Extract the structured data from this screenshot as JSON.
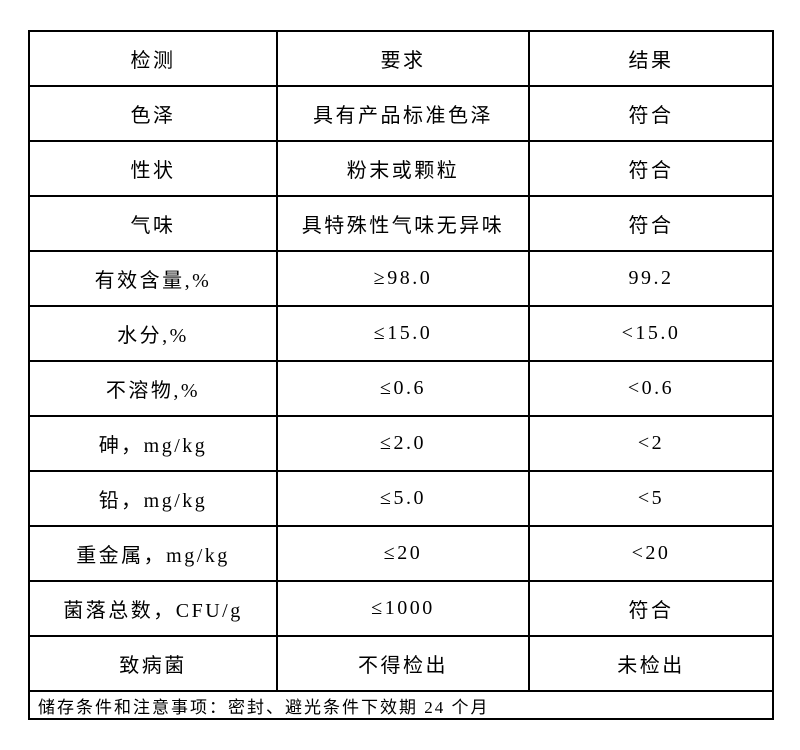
{
  "table": {
    "headers": [
      "检测",
      "要求",
      "结果"
    ],
    "rows": [
      {
        "test": "色泽",
        "requirement": "具有产品标准色泽",
        "result": "符合"
      },
      {
        "test": "性状",
        "requirement": "粉末或颗粒",
        "result": "符合"
      },
      {
        "test": "气味",
        "requirement": "具特殊性气味无异味",
        "result": "符合"
      },
      {
        "test": "有效含量,%",
        "requirement": "≥98.0",
        "result": "99.2"
      },
      {
        "test": "水分,%",
        "requirement": "≤15.0",
        "result": "<15.0"
      },
      {
        "test": "不溶物,%",
        "requirement": "≤0.6",
        "result": "<0.6"
      },
      {
        "test": "砷，mg/kg",
        "requirement": "≤2.0",
        "result": "<2"
      },
      {
        "test": "铅，mg/kg",
        "requirement": "≤5.0",
        "result": "<5"
      },
      {
        "test": "重金属，mg/kg",
        "requirement": "≤20",
        "result": "<20"
      },
      {
        "test": "菌落总数，CFU/g",
        "requirement": "≤1000",
        "result": "符合"
      },
      {
        "test": "致病菌",
        "requirement": "不得检出",
        "result": "未检出"
      }
    ],
    "footer_note": "储存条件和注意事项：密封、避光条件下效期 24 个月",
    "border_color": "#000000",
    "text_color": "#000000"
  }
}
